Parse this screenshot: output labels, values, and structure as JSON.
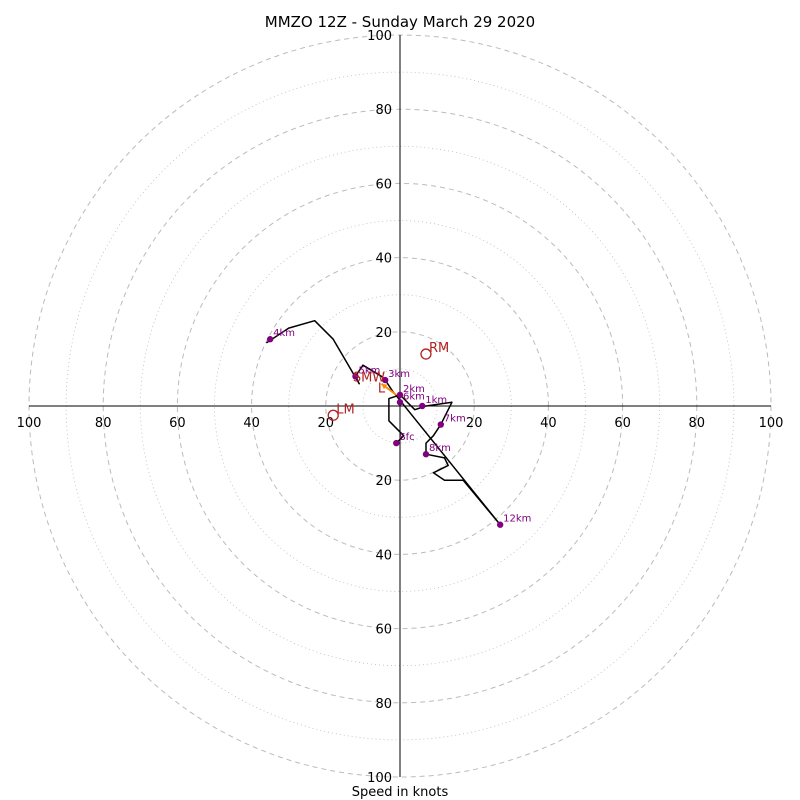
{
  "chart_data": {
    "type": "hodograph",
    "title": "MMZO 12Z - Sunday March 29 2020",
    "xlabel": "Speed in knots",
    "max_speed": 100,
    "rings_major": [
      20,
      40,
      60,
      80,
      100
    ],
    "rings_minor": [
      10,
      30,
      50,
      70,
      90
    ],
    "tick_labels": [
      "20",
      "40",
      "60",
      "80",
      "100"
    ],
    "grid": true,
    "colors": {
      "trace": "#000000",
      "height_marker": "#800080",
      "motion_marker": "#b22222",
      "storm_mean_arrow": "#ff8c00",
      "grid": "#bbbbbb"
    },
    "trace": [
      [
        -1,
        -10
      ],
      [
        1,
        -8
      ],
      [
        -3,
        -4
      ],
      [
        -3,
        2
      ],
      [
        0,
        3
      ],
      [
        4,
        -1
      ],
      [
        7,
        0
      ],
      [
        14,
        1
      ],
      [
        11,
        -5
      ],
      [
        9,
        -8
      ],
      [
        7,
        -10
      ],
      [
        7,
        -13
      ],
      [
        12,
        -14
      ],
      [
        13,
        -16
      ],
      [
        9,
        -18
      ],
      [
        12,
        -20
      ],
      [
        17,
        -20
      ],
      [
        27,
        -32
      ],
      [
        -2,
        4
      ],
      [
        -4,
        7
      ],
      [
        -5,
        8
      ],
      [
        -10,
        11
      ],
      [
        -12,
        8
      ],
      [
        -11,
        6
      ],
      [
        -18,
        18
      ],
      [
        -23,
        23
      ],
      [
        -30,
        21
      ],
      [
        -36,
        17
      ]
    ],
    "height_markers": [
      {
        "label": "Sfc",
        "u": -1,
        "v": -10
      },
      {
        "label": "1km",
        "u": 6,
        "v": 0
      },
      {
        "label": "2km",
        "u": 0,
        "v": 3
      },
      {
        "label": "3km",
        "u": -4,
        "v": 7
      },
      {
        "label": "4km",
        "u": -35,
        "v": 18
      },
      {
        "label": "5km",
        "u": -12,
        "v": 8
      },
      {
        "label": "6km",
        "u": 0,
        "v": 1
      },
      {
        "label": "7km",
        "u": 11,
        "v": -5
      },
      {
        "label": "8km",
        "u": 7,
        "v": -13
      },
      {
        "label": "12km",
        "u": 27,
        "v": -32
      }
    ],
    "storm_motion": [
      {
        "label": "RM",
        "u": 7,
        "v": 14
      },
      {
        "label": "LM",
        "u": -18,
        "v": -2.5
      },
      {
        "label": "L",
        "u": -4,
        "v": 5
      },
      {
        "label": "SMW",
        "u": -4,
        "v": 8
      }
    ],
    "mean_wind_vector": {
      "from": [
        -1,
        3
      ],
      "to": [
        -5,
        6
      ]
    }
  }
}
